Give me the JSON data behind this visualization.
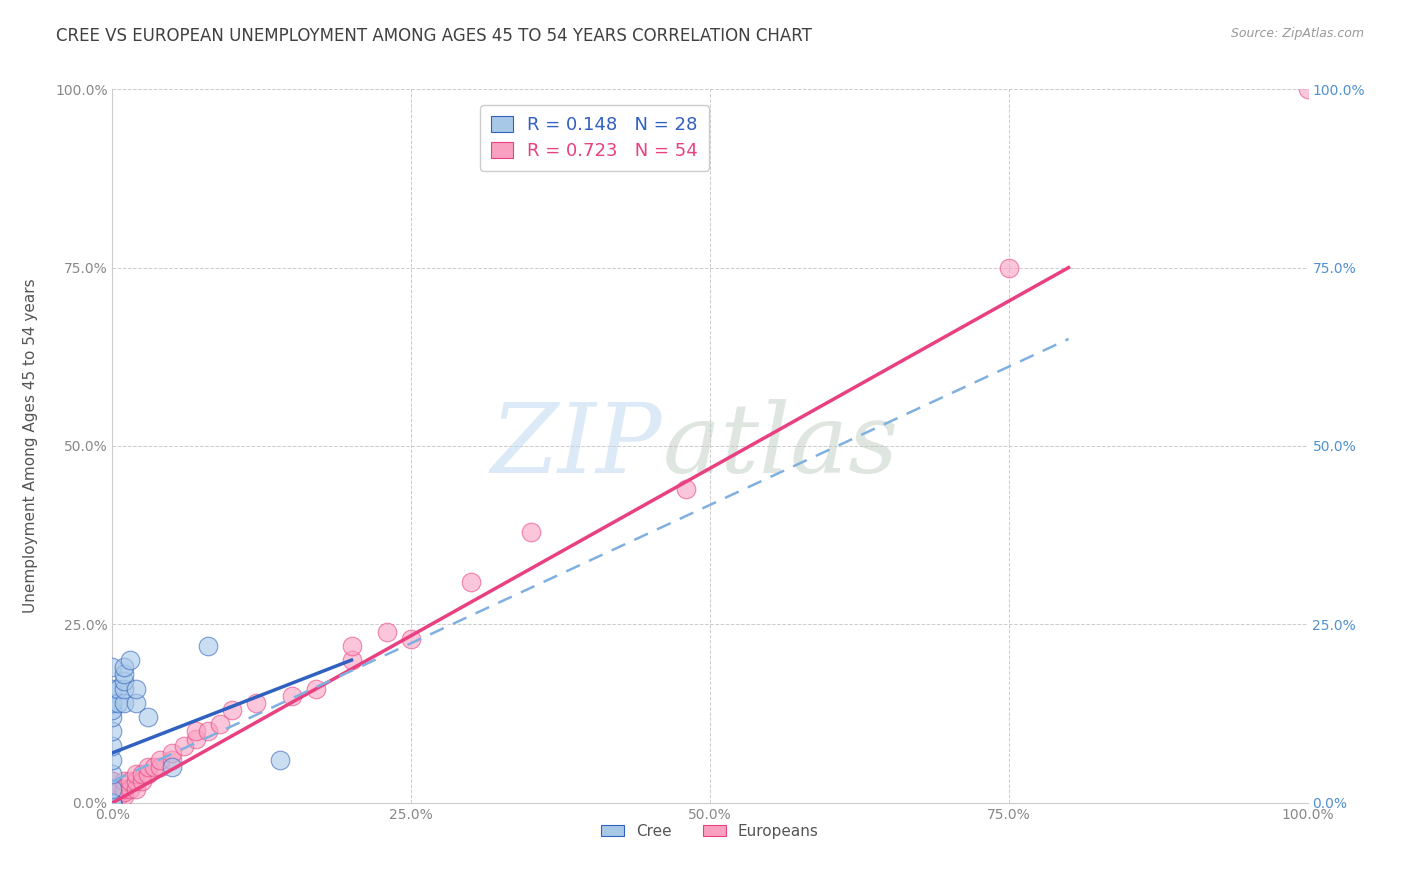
{
  "title": "CREE VS EUROPEAN UNEMPLOYMENT AMONG AGES 45 TO 54 YEARS CORRELATION CHART",
  "source": "Source: ZipAtlas.com",
  "ylabel": "Unemployment Among Ages 45 to 54 years",
  "xlim": [
    0,
    1.0
  ],
  "ylim": [
    0,
    1.0
  ],
  "xticks": [
    0.0,
    0.25,
    0.5,
    0.75,
    1.0
  ],
  "yticks": [
    0.0,
    0.25,
    0.5,
    0.75,
    1.0
  ],
  "xticklabels": [
    "0.0%",
    "25.0%",
    "50.0%",
    "75.0%",
    "100.0%"
  ],
  "yticklabels": [
    "0.0%",
    "25.0%",
    "50.0%",
    "75.0%",
    "100.0%"
  ],
  "watermark_zip": "ZIP",
  "watermark_atlas": "atlas",
  "legend_R_cree": "R = 0.148",
  "legend_N_cree": "N = 28",
  "legend_R_euro": "R = 0.723",
  "legend_N_euro": "N = 54",
  "cree_color": "#a8c8e8",
  "euro_color": "#f9a0c0",
  "cree_line_color": "#3060c0",
  "euro_line_color": "#e84080",
  "dash_line_color": "#80b0e0",
  "background_color": "#ffffff",
  "plot_bg_color": "#ffffff",
  "grid_color": "#cccccc",
  "title_color": "#404040",
  "title_fontsize": 12,
  "axis_label_color": "#555555",
  "tick_label_color": "#888888",
  "right_tick_color": "#5090d0",
  "cree_points_x": [
    0.0,
    0.0,
    0.0,
    0.0,
    0.0,
    0.0,
    0.0,
    0.0,
    0.0,
    0.0,
    0.0,
    0.0,
    0.0,
    0.0,
    0.005,
    0.005,
    0.01,
    0.01,
    0.01,
    0.01,
    0.01,
    0.015,
    0.02,
    0.02,
    0.03,
    0.05,
    0.08,
    0.14
  ],
  "cree_points_y": [
    0.0,
    0.0,
    0.0,
    0.0,
    0.02,
    0.04,
    0.06,
    0.08,
    0.1,
    0.12,
    0.13,
    0.14,
    0.16,
    0.19,
    0.14,
    0.16,
    0.14,
    0.16,
    0.17,
    0.18,
    0.19,
    0.2,
    0.14,
    0.16,
    0.12,
    0.05,
    0.22,
    0.06
  ],
  "euro_points_x": [
    0.0,
    0.0,
    0.0,
    0.0,
    0.0,
    0.0,
    0.0,
    0.0,
    0.0,
    0.0,
    0.0,
    0.0,
    0.0,
    0.0,
    0.0,
    0.005,
    0.005,
    0.005,
    0.01,
    0.01,
    0.01,
    0.01,
    0.015,
    0.015,
    0.02,
    0.02,
    0.02,
    0.025,
    0.025,
    0.03,
    0.03,
    0.035,
    0.04,
    0.04,
    0.05,
    0.05,
    0.06,
    0.07,
    0.07,
    0.08,
    0.09,
    0.1,
    0.12,
    0.15,
    0.17,
    0.2,
    0.2,
    0.23,
    0.25,
    0.3,
    0.35,
    0.48,
    0.75,
    1.0
  ],
  "euro_points_y": [
    0.0,
    0.0,
    0.0,
    0.0,
    0.0,
    0.0,
    0.0,
    0.0,
    0.0,
    0.005,
    0.01,
    0.01,
    0.02,
    0.03,
    0.03,
    0.01,
    0.015,
    0.02,
    0.01,
    0.015,
    0.02,
    0.03,
    0.02,
    0.03,
    0.02,
    0.03,
    0.04,
    0.03,
    0.04,
    0.04,
    0.05,
    0.05,
    0.05,
    0.06,
    0.06,
    0.07,
    0.08,
    0.09,
    0.1,
    0.1,
    0.11,
    0.13,
    0.14,
    0.15,
    0.16,
    0.2,
    0.22,
    0.24,
    0.23,
    0.31,
    0.38,
    0.44,
    0.75,
    1.0
  ],
  "cree_line_x": [
    0.0,
    0.2
  ],
  "cree_line_y_start": 0.07,
  "cree_line_y_end": 0.2,
  "euro_line_x": [
    0.0,
    0.8
  ],
  "euro_line_y_start": 0.0,
  "euro_line_y_end": 0.75,
  "dash_line_x": [
    0.0,
    0.8
  ],
  "dash_line_y_start": 0.03,
  "dash_line_y_end": 0.65
}
